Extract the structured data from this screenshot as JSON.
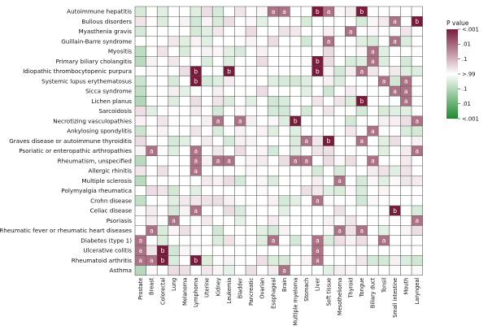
{
  "chart_data": {
    "type": "heatmap",
    "rows": [
      "Autoimmune hepatitis",
      "Bullous disorders",
      "Myasthenia gravis",
      "Guillain-Barre syndrome",
      "Myositis",
      "Primary biliary cholangitis",
      "Idiopathic thrombocytopenic purpura",
      "Systemic lupus erythematosus",
      "Sicca syndrome",
      "Lichen planus",
      "Sarcoidosis",
      "Necrotizing vasculopathies",
      "Ankylosing spondylitis",
      "Graves disease or autoimmune thyroiditis",
      "Psoriatic or enteropathic arthropathies",
      "Rheumatism, unspecified",
      "Allergic rhinitis",
      "Multiple sclerosis",
      "Polymyalgia rheumatica",
      "Crohn disease",
      "Celiac disease",
      "Psoriasis",
      "Rheumatic fever or rheumatic heart diseases",
      "Diabetes (type 1)",
      "Ulcerative colitis",
      "Rheumatoid arthritis",
      "Asthma"
    ],
    "columns": [
      "Prostate",
      "Breast",
      "Colorectal",
      "Lung",
      "Melanoma",
      "Lymphoma",
      "Uterine",
      "Kidney",
      "Leukemia",
      "Bladder",
      "Pancreatic",
      "Ovarian",
      "Esophageal",
      "Brain",
      "Multiple myeloma",
      "Stomach",
      "Liver",
      "Soft tissue",
      "Mesothelioma",
      "Thyroid",
      "Tongue",
      "Biliary duct",
      "Tonsil",
      "Small intestine",
      "Mouth",
      "Laryngeal"
    ],
    "legend": {
      "title": "P value",
      "ticks": [
        "<.001",
        ".01",
        ".1",
        ">.99",
        ".1",
        ".01",
        "<.001"
      ],
      "high_color": "#7a1b3c",
      "mid_color": "#ffffff",
      "low_color": "#1e8a2e"
    },
    "marks": [
      {
        "row": 0,
        "col": 12,
        "label": "a"
      },
      {
        "row": 0,
        "col": 13,
        "label": "a"
      },
      {
        "row": 0,
        "col": 16,
        "label": "b"
      },
      {
        "row": 0,
        "col": 17,
        "label": "a"
      },
      {
        "row": 0,
        "col": 20,
        "label": "b"
      },
      {
        "row": 1,
        "col": 23,
        "label": "a"
      },
      {
        "row": 1,
        "col": 25,
        "label": "b"
      },
      {
        "row": 2,
        "col": 19,
        "label": "a"
      },
      {
        "row": 3,
        "col": 17,
        "label": "a"
      },
      {
        "row": 3,
        "col": 23,
        "label": "a"
      },
      {
        "row": 4,
        "col": 21,
        "label": "a"
      },
      {
        "row": 5,
        "col": 16,
        "label": "b"
      },
      {
        "row": 5,
        "col": 21,
        "label": "a"
      },
      {
        "row": 6,
        "col": 5,
        "label": "b"
      },
      {
        "row": 6,
        "col": 8,
        "label": "b"
      },
      {
        "row": 6,
        "col": 16,
        "label": "b"
      },
      {
        "row": 6,
        "col": 20,
        "label": "a"
      },
      {
        "row": 7,
        "col": 5,
        "label": "b"
      },
      {
        "row": 7,
        "col": 22,
        "label": "a"
      },
      {
        "row": 7,
        "col": 24,
        "label": "a"
      },
      {
        "row": 8,
        "col": 23,
        "label": "a"
      },
      {
        "row": 8,
        "col": 24,
        "label": "a"
      },
      {
        "row": 9,
        "col": 20,
        "label": "b"
      },
      {
        "row": 9,
        "col": 24,
        "label": "a"
      },
      {
        "row": 11,
        "col": 7,
        "label": "a"
      },
      {
        "row": 11,
        "col": 9,
        "label": "a"
      },
      {
        "row": 11,
        "col": 14,
        "label": "b"
      },
      {
        "row": 11,
        "col": 25,
        "label": "a"
      },
      {
        "row": 12,
        "col": 21,
        "label": "a"
      },
      {
        "row": 13,
        "col": 15,
        "label": "a"
      },
      {
        "row": 13,
        "col": 17,
        "label": "b"
      },
      {
        "row": 13,
        "col": 20,
        "label": "a"
      },
      {
        "row": 14,
        "col": 1,
        "label": "a"
      },
      {
        "row": 14,
        "col": 5,
        "label": "a"
      },
      {
        "row": 14,
        "col": 25,
        "label": "a"
      },
      {
        "row": 15,
        "col": 5,
        "label": "a"
      },
      {
        "row": 15,
        "col": 7,
        "label": "a"
      },
      {
        "row": 15,
        "col": 8,
        "label": "a"
      },
      {
        "row": 15,
        "col": 14,
        "label": "a"
      },
      {
        "row": 15,
        "col": 15,
        "label": "a"
      },
      {
        "row": 15,
        "col": 21,
        "label": "a"
      },
      {
        "row": 16,
        "col": 5,
        "label": "a"
      },
      {
        "row": 17,
        "col": 18,
        "label": "a"
      },
      {
        "row": 19,
        "col": 16,
        "label": "a"
      },
      {
        "row": 20,
        "col": 5,
        "label": "a"
      },
      {
        "row": 20,
        "col": 23,
        "label": "b"
      },
      {
        "row": 21,
        "col": 3,
        "label": "a"
      },
      {
        "row": 21,
        "col": 25,
        "label": "a"
      },
      {
        "row": 22,
        "col": 1,
        "label": "a"
      },
      {
        "row": 22,
        "col": 18,
        "label": "a"
      },
      {
        "row": 22,
        "col": 20,
        "label": "a"
      },
      {
        "row": 23,
        "col": 0,
        "label": "a"
      },
      {
        "row": 23,
        "col": 12,
        "label": "a"
      },
      {
        "row": 23,
        "col": 16,
        "label": "a"
      },
      {
        "row": 23,
        "col": 22,
        "label": "a"
      },
      {
        "row": 24,
        "col": 0,
        "label": "a"
      },
      {
        "row": 24,
        "col": 2,
        "label": "b"
      },
      {
        "row": 24,
        "col": 16,
        "label": "a"
      },
      {
        "row": 25,
        "col": 0,
        "label": "a"
      },
      {
        "row": 25,
        "col": 1,
        "label": "a"
      },
      {
        "row": 25,
        "col": 2,
        "label": "b"
      },
      {
        "row": 25,
        "col": 5,
        "label": "b"
      },
      {
        "row": 25,
        "col": 16,
        "label": "a"
      },
      {
        "row": 26,
        "col": 13,
        "label": "a"
      }
    ]
  }
}
